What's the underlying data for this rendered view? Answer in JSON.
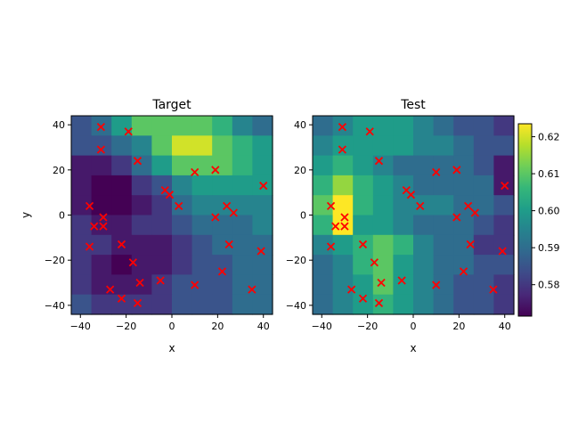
{
  "chart_data": [
    {
      "type": "heatmap",
      "title": "Target",
      "xlabel": "x",
      "ylabel": "y",
      "xlim": [
        -44,
        44
      ],
      "ylim": [
        -44,
        44
      ],
      "x_ticks": [
        -40,
        -20,
        0,
        20,
        40
      ],
      "y_ticks": [
        -40,
        -20,
        0,
        20,
        40
      ],
      "grid_extent": [
        -44,
        44
      ],
      "grid_size": 10,
      "values": [
        [
          0.585,
          0.59,
          0.6,
          0.61,
          0.61,
          0.61,
          0.61,
          0.605,
          0.595,
          0.59
        ],
        [
          0.585,
          0.585,
          0.59,
          0.595,
          0.61,
          0.62,
          0.62,
          0.61,
          0.605,
          0.6
        ],
        [
          0.575,
          0.575,
          0.58,
          0.59,
          0.6,
          0.61,
          0.61,
          0.61,
          0.605,
          0.6
        ],
        [
          0.575,
          0.57,
          0.57,
          0.58,
          0.585,
          0.595,
          0.6,
          0.6,
          0.6,
          0.6
        ],
        [
          0.575,
          0.57,
          0.57,
          0.575,
          0.58,
          0.59,
          0.595,
          0.595,
          0.595,
          0.595
        ],
        [
          0.58,
          0.575,
          0.575,
          0.58,
          0.58,
          0.585,
          0.59,
          0.59,
          0.59,
          0.595
        ],
        [
          0.58,
          0.58,
          0.575,
          0.575,
          0.575,
          0.58,
          0.585,
          0.59,
          0.59,
          0.59
        ],
        [
          0.58,
          0.575,
          0.57,
          0.575,
          0.575,
          0.58,
          0.585,
          0.585,
          0.59,
          0.59
        ],
        [
          0.58,
          0.575,
          0.575,
          0.575,
          0.58,
          0.585,
          0.585,
          0.585,
          0.59,
          0.59
        ],
        [
          0.585,
          0.58,
          0.58,
          0.58,
          0.58,
          0.585,
          0.585,
          0.585,
          0.59,
          0.59
        ]
      ]
    },
    {
      "type": "heatmap",
      "title": "Test",
      "xlabel": "x",
      "ylabel": "",
      "xlim": [
        -44,
        44
      ],
      "ylim": [
        -44,
        44
      ],
      "x_ticks": [
        -40,
        -20,
        0,
        20,
        40
      ],
      "y_ticks": [
        -40,
        -20,
        0,
        20,
        40
      ],
      "grid_extent": [
        -44,
        44
      ],
      "grid_size": 10,
      "values": [
        [
          0.59,
          0.595,
          0.6,
          0.6,
          0.6,
          0.595,
          0.59,
          0.585,
          0.585,
          0.58
        ],
        [
          0.595,
          0.6,
          0.6,
          0.6,
          0.6,
          0.595,
          0.595,
          0.59,
          0.585,
          0.585
        ],
        [
          0.6,
          0.605,
          0.6,
          0.595,
          0.59,
          0.59,
          0.59,
          0.59,
          0.585,
          0.575
        ],
        [
          0.605,
          0.615,
          0.605,
          0.6,
          0.595,
          0.59,
          0.59,
          0.59,
          0.59,
          0.575
        ],
        [
          0.61,
          0.625,
          0.605,
          0.6,
          0.595,
          0.595,
          0.595,
          0.59,
          0.59,
          0.585
        ],
        [
          0.605,
          0.625,
          0.6,
          0.6,
          0.595,
          0.59,
          0.59,
          0.59,
          0.585,
          0.58
        ],
        [
          0.595,
          0.6,
          0.605,
          0.61,
          0.605,
          0.595,
          0.59,
          0.59,
          0.58,
          0.58
        ],
        [
          0.59,
          0.595,
          0.605,
          0.61,
          0.6,
          0.595,
          0.59,
          0.59,
          0.585,
          0.585
        ],
        [
          0.59,
          0.595,
          0.6,
          0.61,
          0.6,
          0.595,
          0.59,
          0.585,
          0.585,
          0.58
        ],
        [
          0.59,
          0.595,
          0.6,
          0.605,
          0.6,
          0.595,
          0.59,
          0.585,
          0.585,
          0.58
        ]
      ]
    }
  ],
  "points": [
    [
      -31,
      39
    ],
    [
      -31,
      29
    ],
    [
      -19,
      37
    ],
    [
      -15,
      24
    ],
    [
      10,
      19
    ],
    [
      19,
      20
    ],
    [
      40,
      13
    ],
    [
      -3,
      11
    ],
    [
      -1,
      9
    ],
    [
      3,
      4
    ],
    [
      -36,
      4
    ],
    [
      -30,
      -1
    ],
    [
      -30,
      -5
    ],
    [
      -34,
      -5
    ],
    [
      24,
      4
    ],
    [
      27,
      1
    ],
    [
      19,
      -1
    ],
    [
      -36,
      -14
    ],
    [
      -22,
      -13
    ],
    [
      25,
      -13
    ],
    [
      39,
      -16
    ],
    [
      -17,
      -21
    ],
    [
      22,
      -25
    ],
    [
      -14,
      -30
    ],
    [
      -5,
      -29
    ],
    [
      10,
      -31
    ],
    [
      -27,
      -33
    ],
    [
      35,
      -33
    ],
    [
      -22,
      -37
    ],
    [
      -15,
      -39
    ]
  ],
  "colorbar": {
    "min": 0.5715,
    "max": 0.6235,
    "ticks": [
      "0.58",
      "0.59",
      "0.60",
      "0.61",
      "0.62"
    ],
    "tick_values": [
      0.58,
      0.59,
      0.6,
      0.61,
      0.62
    ]
  },
  "colors": {
    "marker": "#ff0000",
    "viridis": [
      "#440154",
      "#482878",
      "#3e4a89",
      "#31688e",
      "#26828e",
      "#1f9e89",
      "#35b779",
      "#6ece58",
      "#b5de2b",
      "#fde725"
    ]
  }
}
